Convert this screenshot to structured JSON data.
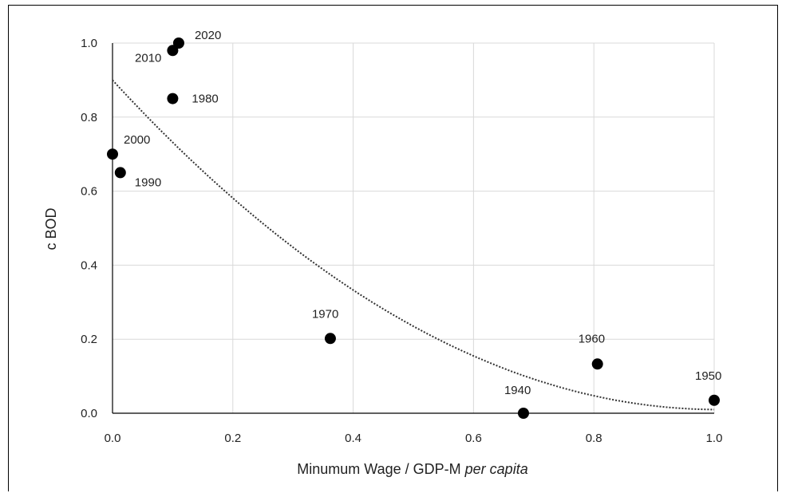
{
  "chart_data": {
    "type": "scatter",
    "xlabel": "Minumum Wage / GDP-M ",
    "xlabel_italic": "per capita",
    "ylabel": "c BOD",
    "xlim": [
      0,
      1
    ],
    "ylim": [
      0,
      1
    ],
    "grid": true,
    "x_ticks": [
      "0.0",
      "0.2",
      "0.4",
      "0.6",
      "0.8",
      "1.0"
    ],
    "y_ticks": [
      "0.0",
      "0.2",
      "0.4",
      "0.6",
      "0.8",
      "1.0"
    ],
    "points": [
      {
        "label": "1940",
        "x": 0.683,
        "y": 0.0
      },
      {
        "label": "1950",
        "x": 1.0,
        "y": 0.035
      },
      {
        "label": "1960",
        "x": 0.806,
        "y": 0.133
      },
      {
        "label": "1970",
        "x": 0.362,
        "y": 0.202
      },
      {
        "label": "1980",
        "x": 0.1,
        "y": 0.85
      },
      {
        "label": "1990",
        "x": 0.013,
        "y": 0.65
      },
      {
        "label": "2000",
        "x": 0.0,
        "y": 0.7
      },
      {
        "label": "2010",
        "x": 0.1,
        "y": 0.98
      },
      {
        "label": "2020",
        "x": 0.11,
        "y": 1.0
      }
    ],
    "trendline": {
      "type": "polynomial",
      "style": "dotted",
      "coefficients": [
        0.9,
        -1.77,
        0.88
      ]
    },
    "colors": {
      "points": "#000000",
      "grid": "#d9d9d9",
      "axis": "#000000",
      "trend": "#333333"
    }
  }
}
